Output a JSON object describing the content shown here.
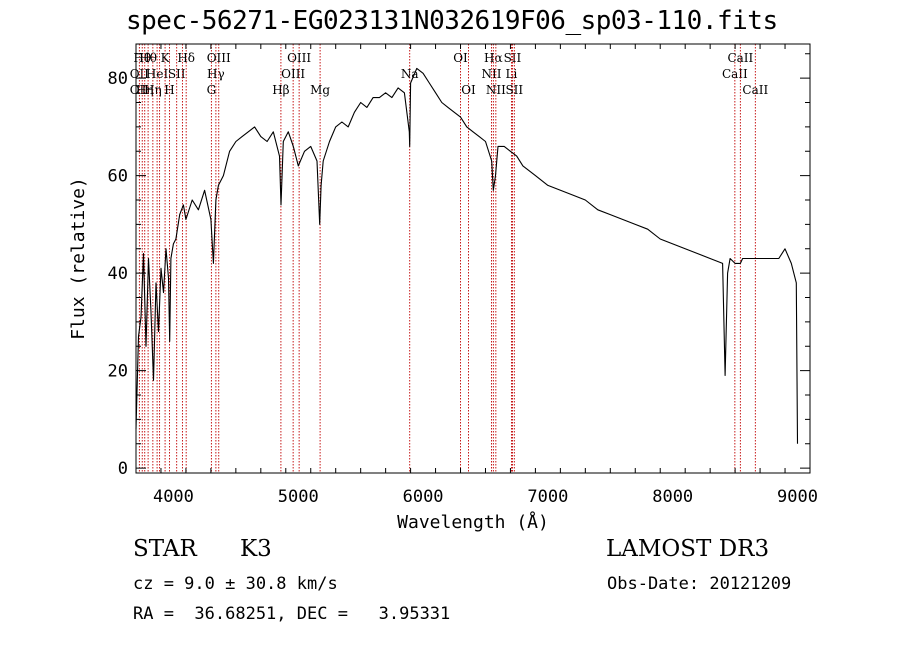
{
  "chart_data": {
    "type": "line",
    "title": "spec-56271-EG023131N032619F06_sp03-110.fits",
    "xlabel": "Wavelength (Å)",
    "ylabel": "Flux (relative)",
    "xlim": [
      3700,
      9100
    ],
    "ylim": [
      -1,
      87
    ],
    "xticks": [
      4000,
      5000,
      6000,
      7000,
      8000,
      9000
    ],
    "yticks": [
      0,
      20,
      40,
      60,
      80
    ],
    "grid": false,
    "series": [
      {
        "name": "flux",
        "color": "#000000",
        "x": [
          3700,
          3720,
          3740,
          3760,
          3780,
          3800,
          3820,
          3840,
          3860,
          3880,
          3900,
          3920,
          3940,
          3960,
          3970,
          3980,
          4000,
          4020,
          4050,
          4080,
          4100,
          4150,
          4200,
          4250,
          4300,
          4320,
          4340,
          4360,
          4400,
          4450,
          4500,
          4550,
          4600,
          4650,
          4700,
          4750,
          4800,
          4850,
          4862,
          4880,
          4920,
          4960,
          5000,
          5050,
          5100,
          5150,
          5172,
          5183,
          5200,
          5250,
          5300,
          5350,
          5400,
          5450,
          5500,
          5550,
          5600,
          5650,
          5700,
          5750,
          5800,
          5850,
          5890,
          5893,
          5900,
          5950,
          6000,
          6050,
          6100,
          6150,
          6200,
          6250,
          6300,
          6350,
          6400,
          6450,
          6500,
          6550,
          6563,
          6580,
          6600,
          6650,
          6700,
          6750,
          6800,
          6900,
          7000,
          7100,
          7200,
          7300,
          7400,
          7500,
          7600,
          7700,
          7800,
          7900,
          8000,
          8100,
          8200,
          8300,
          8400,
          8420,
          8440,
          8460,
          8500,
          8542,
          8560,
          8600,
          8662,
          8700,
          8750,
          8800,
          8850,
          8900,
          8950,
          8990,
          9000
        ],
        "y": [
          8,
          27,
          31,
          44,
          25,
          43,
          32,
          18,
          38,
          28,
          41,
          36,
          45,
          39,
          26,
          43,
          46,
          47,
          52,
          54,
          51,
          55,
          53,
          57,
          51,
          42,
          55,
          58,
          60,
          65,
          67,
          68,
          69,
          70,
          68,
          67,
          69,
          64,
          54,
          67,
          69,
          66,
          62,
          65,
          66,
          63,
          50,
          58,
          63,
          67,
          70,
          71,
          70,
          73,
          75,
          74,
          76,
          76,
          77,
          76,
          78,
          77,
          69,
          66,
          79,
          82,
          81,
          79,
          77,
          75,
          74,
          73,
          72,
          70,
          69,
          68,
          67,
          63,
          57,
          60,
          66,
          66,
          65,
          64,
          62,
          60,
          58,
          57,
          56,
          55,
          53,
          52,
          51,
          50,
          49,
          47,
          46,
          45,
          44,
          43,
          42,
          19,
          40,
          43,
          42,
          42,
          43,
          43,
          43,
          43,
          43,
          43,
          43,
          45,
          42,
          38,
          5
        ]
      }
    ],
    "lines": [
      {
        "wl": 3727,
        "top": "",
        "mid": "OII",
        "bot": "OII"
      },
      {
        "wl": 3750,
        "top": "Hθ",
        "mid": "",
        "bot": ""
      },
      {
        "wl": 3770,
        "top": "",
        "mid": "",
        "bot": "Hη"
      },
      {
        "wl": 3797,
        "top": "Hθ",
        "mid": "",
        "bot": ""
      },
      {
        "wl": 3835,
        "top": "",
        "mid": "",
        "bot": "Hη"
      },
      {
        "wl": 3869,
        "top": "",
        "mid": "HeI",
        "bot": ""
      },
      {
        "wl": 3889,
        "top": "",
        "mid": "",
        "bot": ""
      },
      {
        "wl": 3933,
        "top": "K",
        "mid": "",
        "bot": ""
      },
      {
        "wl": 3968,
        "top": "",
        "mid": "",
        "bot": "H"
      },
      {
        "wl": 4026,
        "top": "",
        "mid": "SII",
        "bot": ""
      },
      {
        "wl": 4072,
        "top": "",
        "mid": "",
        "bot": ""
      },
      {
        "wl": 4102,
        "top": "Hδ",
        "mid": "",
        "bot": ""
      },
      {
        "wl": 4304,
        "top": "",
        "mid": "",
        "bot": "G"
      },
      {
        "wl": 4340,
        "top": "",
        "mid": "Hγ",
        "bot": ""
      },
      {
        "wl": 4363,
        "top": "OIII",
        "mid": "",
        "bot": ""
      },
      {
        "wl": 4861,
        "top": "",
        "mid": "",
        "bot": "Hβ"
      },
      {
        "wl": 4959,
        "top": "",
        "mid": "OIII",
        "bot": ""
      },
      {
        "wl": 5007,
        "top": "OIII",
        "mid": "",
        "bot": ""
      },
      {
        "wl": 5175,
        "top": "",
        "mid": "",
        "bot": "Mg"
      },
      {
        "wl": 5893,
        "top": "",
        "mid": "Na",
        "bot": ""
      },
      {
        "wl": 6300,
        "top": "OI",
        "mid": "",
        "bot": ""
      },
      {
        "wl": 6364,
        "top": "",
        "mid": "",
        "bot": "OI"
      },
      {
        "wl": 6548,
        "top": "",
        "mid": "NII",
        "bot": ""
      },
      {
        "wl": 6563,
        "top": "Hα",
        "mid": "",
        "bot": ""
      },
      {
        "wl": 6583,
        "top": "",
        "mid": "",
        "bot": "NII"
      },
      {
        "wl": 6708,
        "top": "",
        "mid": "Li",
        "bot": ""
      },
      {
        "wl": 6716,
        "top": "SII",
        "mid": "",
        "bot": ""
      },
      {
        "wl": 6731,
        "top": "",
        "mid": "",
        "bot": "SII"
      },
      {
        "wl": 8498,
        "top": "",
        "mid": "CaII",
        "bot": ""
      },
      {
        "wl": 8542,
        "top": "CaII",
        "mid": "",
        "bot": ""
      },
      {
        "wl": 8662,
        "top": "",
        "mid": "",
        "bot": "CaII"
      }
    ]
  },
  "info": {
    "object_class": "STAR",
    "subclass": "K3",
    "survey": "LAMOST DR3",
    "redshift_line": "cz = 9.0 ± 30.8 km/s",
    "obs_date_line": "Obs-Date: 20121209",
    "coords_line": "RA =  36.68251, DEC =   3.95331"
  },
  "colors": {
    "spectrum": "#000000",
    "line_markers": "#c00000",
    "axes": "#000000"
  }
}
